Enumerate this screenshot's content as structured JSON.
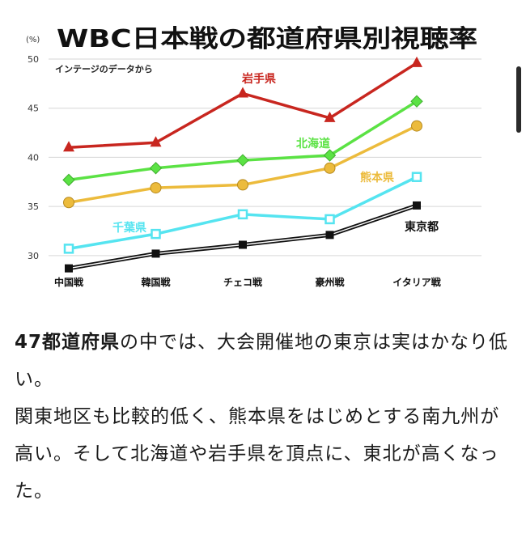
{
  "chart_data": {
    "type": "line",
    "title": "WBC日本戦の都道府県別視聴率",
    "unit": "(%)",
    "source": "インテージのデータから",
    "categories": [
      "中国戦",
      "韓国戦",
      "チェコ戦",
      "豪州戦",
      "イタリア戦"
    ],
    "ylim": [
      29,
      50
    ],
    "yticks": [
      30,
      35,
      40,
      45,
      50
    ],
    "grid": true,
    "series": [
      {
        "name": "岩手県",
        "color": "#c8261f",
        "marker": "triangle",
        "values": [
          41.0,
          41.5,
          46.5,
          44.0,
          49.6
        ]
      },
      {
        "name": "北海道",
        "color": "#5be244",
        "marker": "diamond",
        "values": [
          37.7,
          38.9,
          39.7,
          40.2,
          45.7
        ]
      },
      {
        "name": "熊本県",
        "color": "#ecbb3c",
        "marker": "circle",
        "values": [
          35.4,
          36.9,
          37.2,
          38.9,
          43.2
        ]
      },
      {
        "name": "千葉県",
        "color": "#55e4f0",
        "marker": "square-open",
        "values": [
          30.7,
          32.2,
          34.2,
          33.7,
          38.0
        ]
      },
      {
        "name": "東京都",
        "color": "#111111",
        "marker": "square",
        "values": [
          28.7,
          30.2,
          31.1,
          32.1,
          35.1
        ]
      }
    ]
  },
  "article": {
    "p1_strong": "47都道府県",
    "p1_rest": "の中では、大会開催地の東京は実はかなり低い。",
    "p2": "関東地区も比較的低く、熊本県をはじめとする南九州が高い。そして北海道や岩手県を頂点に、東北が高くなった。"
  }
}
